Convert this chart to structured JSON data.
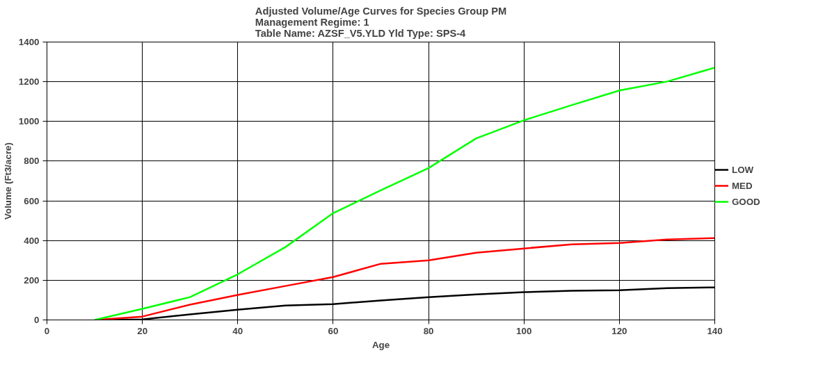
{
  "chart_data": {
    "type": "line",
    "title": "Adjusted Volume/Age Curves for Species Group PM",
    "subtitle": "Management Regime: 1\nTable Name: AZSF_V5.YLD        Yld Type: SPS-4",
    "xlabel": "Age",
    "ylabel": "Volume (Ft3/acre)",
    "x": [
      10,
      20,
      30,
      40,
      50,
      60,
      70,
      80,
      90,
      100,
      110,
      120,
      130,
      140
    ],
    "series": [
      {
        "name": "LOW",
        "color": "#000000",
        "values": [
          0,
          3,
          28,
          52,
          73,
          80,
          98,
          115,
          129,
          140,
          147,
          150,
          160,
          164
        ]
      },
      {
        "name": "MED",
        "color": "#ff0000",
        "values": [
          0,
          17,
          77,
          126,
          171,
          216,
          283,
          300,
          339,
          360,
          381,
          388,
          405,
          412
        ]
      },
      {
        "name": "GOOD",
        "color": "#00ff00",
        "values": [
          0,
          56,
          115,
          230,
          367,
          538,
          653,
          765,
          915,
          1006,
          1082,
          1156,
          1201,
          1271
        ]
      }
    ],
    "xlim": [
      0,
      140
    ],
    "xticks": [
      0,
      20,
      40,
      60,
      80,
      100,
      120,
      140
    ],
    "ylim": [
      0,
      1400
    ],
    "yticks": [
      0,
      200,
      400,
      600,
      800,
      1000,
      1200,
      1400
    ],
    "grid": true,
    "legend": "right",
    "marker": "none",
    "line_style": "solid"
  }
}
